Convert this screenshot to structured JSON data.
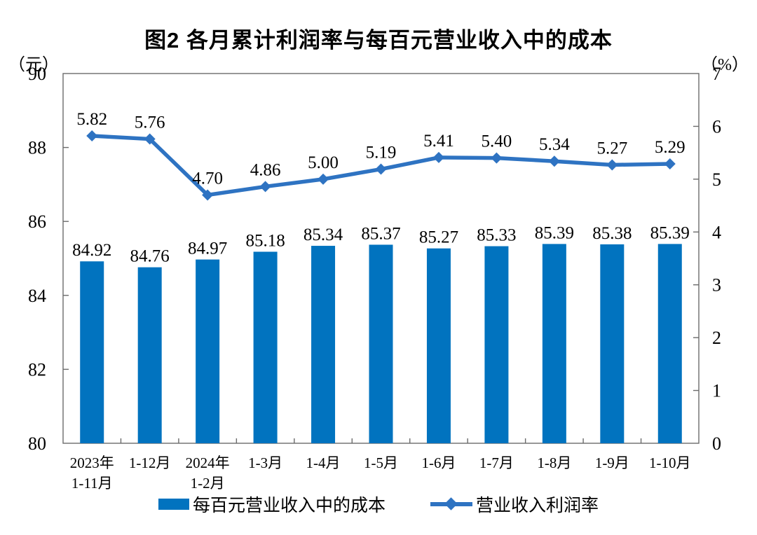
{
  "title": "图2 各月累计利润率与每百元营业收入中的成本",
  "colors": {
    "bar": "#0173BF",
    "line": "#2E73C2",
    "axis": "#6B6B6B",
    "text": "#000000"
  },
  "chart_data": {
    "type": "bar+line",
    "title": "图2 各月累计利润率与每百元营业收入中的成本",
    "grid": false,
    "legend_position": "bottom",
    "categories": [
      "2023年\n1-11月",
      "1-12月",
      "2024年\n1-2月",
      "1-3月",
      "1-4月",
      "1-5月",
      "1-6月",
      "1-7月",
      "1-8月",
      "1-9月",
      "1-10月"
    ],
    "left_axis": {
      "unit": "（元）",
      "min": 80,
      "max": 90,
      "ticks": [
        90,
        88,
        86,
        84,
        82,
        80
      ]
    },
    "right_axis": {
      "unit": "（%）",
      "min": 0,
      "max": 7,
      "ticks": [
        7,
        6,
        5,
        4,
        3,
        2,
        1,
        0
      ]
    },
    "series": [
      {
        "name": "每百元营业收入中的成本",
        "type": "bar",
        "axis": "left",
        "values": [
          84.92,
          84.76,
          84.97,
          85.18,
          85.34,
          85.37,
          85.27,
          85.33,
          85.39,
          85.38,
          85.39
        ],
        "labels": [
          "84.92",
          "84.76",
          "84.97",
          "85.18",
          "85.34",
          "85.37",
          "85.27",
          "85.33",
          "85.39",
          "85.38",
          "85.39"
        ]
      },
      {
        "name": "营业收入利润率",
        "type": "line",
        "axis": "right",
        "values": [
          5.82,
          5.76,
          4.7,
          4.86,
          5.0,
          5.19,
          5.41,
          5.4,
          5.34,
          5.27,
          5.29
        ],
        "labels": [
          "5.82",
          "5.76",
          "4.70",
          "4.86",
          "5.00",
          "5.19",
          "5.41",
          "5.40",
          "5.34",
          "5.27",
          "5.29"
        ]
      }
    ]
  }
}
